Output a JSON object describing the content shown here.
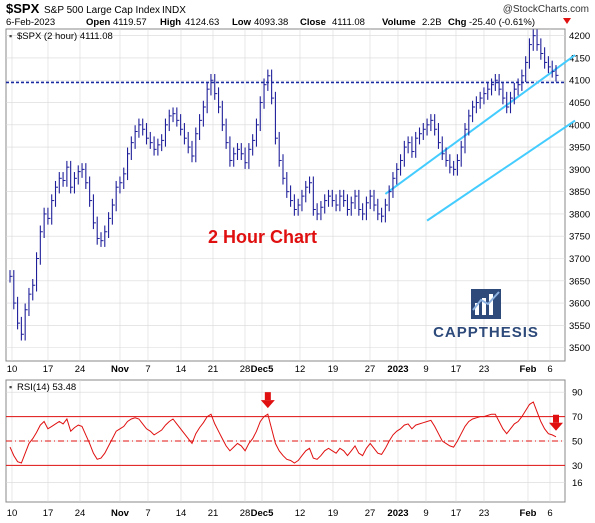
{
  "header": {
    "symbol": "$SPX",
    "name": "S&P 500 Large Cap Index",
    "exchange": "INDX",
    "source": "@StockCharts.com",
    "date": "6-Feb-2023",
    "open_label": "Open",
    "open": "4119.57",
    "high_label": "High",
    "high": "4124.63",
    "low_label": "Low",
    "low": "4093.38",
    "close_label": "Close",
    "close": "4111.08",
    "volume_label": "Volume",
    "volume": "2.2B",
    "chg_label": "Chg",
    "chg": "-25.40 (-0.61%)"
  },
  "legend_main": "$SPX (2 hour) 4111.08",
  "annotation": "2 Hour Chart",
  "logo_text": "CAPPTHESIS",
  "legend_rsi": "RSI(14) 53.48",
  "colors": {
    "price": "#1f1f9a",
    "channel": "#44ccff",
    "support": "#1a2aa0",
    "rsi": "#e01010",
    "annotation": "#e01010",
    "logo": "#2d4a7a",
    "grid": "#d8d8d8"
  },
  "chart_data": [
    {
      "type": "line",
      "ylim": [
        3470,
        4215
      ],
      "yticks": [
        "3500",
        "3550",
        "3600",
        "3650",
        "3700",
        "3750",
        "3800",
        "3850",
        "3900",
        "3950",
        "4000",
        "4050",
        "4100",
        "4150",
        "4200"
      ],
      "x_labels": [
        "10",
        "17",
        "24",
        "Nov",
        "7",
        "14",
        "21",
        "28",
        "Dec5",
        "12",
        "19",
        "27",
        "2023",
        "9",
        "17",
        "23",
        "Feb",
        "6"
      ],
      "support_level": 4095,
      "channel": {
        "upper": [
          {
            "i": 99,
            "v": 3845
          },
          {
            "i": 152,
            "v": 4175
          }
        ],
        "lower": [
          {
            "i": 110,
            "v": 3785
          },
          {
            "i": 163,
            "v": 4090
          }
        ]
      },
      "series": [
        {
          "name": "$SPX",
          "values": [
            3660,
            3600,
            3555,
            3530,
            3585,
            3620,
            3640,
            3700,
            3760,
            3800,
            3790,
            3830,
            3860,
            3880,
            3875,
            3905,
            3860,
            3880,
            3895,
            3900,
            3870,
            3830,
            3780,
            3745,
            3740,
            3760,
            3790,
            3820,
            3860,
            3870,
            3890,
            3935,
            3960,
            3985,
            4000,
            3990,
            3970,
            3960,
            3945,
            3955,
            3965,
            4000,
            4020,
            4025,
            4010,
            3990,
            3970,
            3950,
            3930,
            3980,
            4010,
            4040,
            4080,
            4100,
            4070,
            4040,
            4000,
            3960,
            3920,
            3935,
            3945,
            3935,
            3915,
            3945,
            3965,
            4000,
            4050,
            4090,
            4110,
            4060,
            3970,
            3920,
            3880,
            3850,
            3830,
            3810,
            3820,
            3840,
            3860,
            3870,
            3810,
            3800,
            3815,
            3830,
            3840,
            3830,
            3820,
            3840,
            3830,
            3810,
            3825,
            3840,
            3810,
            3800,
            3825,
            3840,
            3820,
            3800,
            3795,
            3820,
            3850,
            3880,
            3900,
            3920,
            3950,
            3960,
            3940,
            3970,
            3980,
            3990,
            4000,
            4010,
            3990,
            3960,
            3935,
            3920,
            3905,
            3900,
            3920,
            3950,
            3990,
            4020,
            4040,
            4050,
            4060,
            4070,
            4080,
            4090,
            4100,
            4080,
            4060,
            4040,
            4060,
            4080,
            4090,
            4110,
            4140,
            4180,
            4200,
            4180,
            4160,
            4140,
            4130,
            4120,
            4111
          ]
        }
      ]
    },
    {
      "type": "line",
      "title": "RSI(14)",
      "ylim": [
        0,
        100
      ],
      "yticks": [
        "16",
        "30",
        "50",
        "70",
        "90"
      ],
      "levels": [
        30,
        50,
        70
      ],
      "x_labels": [
        "10",
        "17",
        "24",
        "Nov",
        "7",
        "14",
        "21",
        "28",
        "Dec5",
        "12",
        "19",
        "27",
        "2023",
        "9",
        "17",
        "23",
        "Feb",
        "6"
      ],
      "markers": [
        {
          "i": 68
        },
        {
          "i": 144
        }
      ],
      "series": [
        {
          "name": "RSI",
          "values": [
            45,
            38,
            33,
            32,
            40,
            48,
            52,
            57,
            63,
            66,
            60,
            62,
            64,
            66,
            64,
            68,
            58,
            61,
            63,
            62,
            55,
            48,
            40,
            35,
            36,
            40,
            46,
            52,
            58,
            60,
            62,
            66,
            68,
            69,
            68,
            64,
            60,
            58,
            55,
            57,
            59,
            63,
            66,
            68,
            64,
            60,
            56,
            52,
            48,
            56,
            61,
            65,
            70,
            72,
            64,
            58,
            52,
            46,
            42,
            45,
            48,
            46,
            42,
            48,
            52,
            58,
            66,
            70,
            72,
            60,
            48,
            42,
            38,
            35,
            34,
            32,
            34,
            38,
            42,
            44,
            36,
            35,
            38,
            42,
            44,
            42,
            40,
            44,
            42,
            38,
            42,
            46,
            40,
            38,
            44,
            48,
            44,
            40,
            39,
            44,
            50,
            55,
            58,
            60,
            63,
            64,
            60,
            63,
            64,
            65,
            66,
            67,
            62,
            56,
            50,
            48,
            46,
            45,
            50,
            56,
            62,
            66,
            68,
            69,
            70,
            70,
            71,
            72,
            72,
            66,
            60,
            56,
            60,
            64,
            66,
            70,
            75,
            80,
            82,
            74,
            66,
            60,
            56,
            55,
            53.48
          ]
        }
      ]
    }
  ]
}
